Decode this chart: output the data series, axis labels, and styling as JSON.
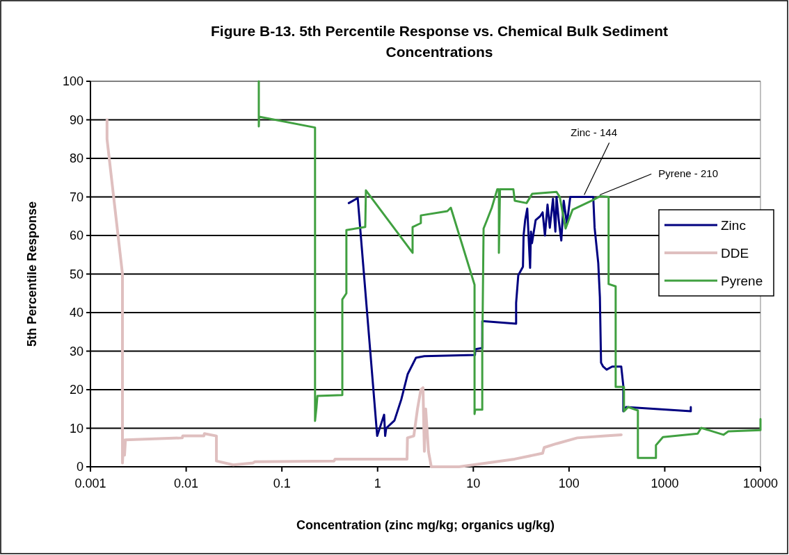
{
  "chart_data": {
    "type": "line",
    "title": "Figure B-13.  5th Percentile Response vs. Chemical Bulk Sediment Concentrations",
    "xlabel": "Concentration (zinc mg/kg; organics ug/kg)",
    "ylabel": "5th Percentile Response",
    "log": "x",
    "xlim": [
      0.001,
      10000
    ],
    "xticks": [
      0.001,
      0.01,
      0.1,
      1,
      10,
      100,
      1000,
      10000
    ],
    "ylim": [
      0,
      100
    ],
    "yticks": [
      0,
      10,
      20,
      30,
      40,
      50,
      60,
      70,
      80,
      90,
      100
    ],
    "grid": "y",
    "legend": "right",
    "line_style": "solid",
    "marker": "none",
    "annotations": [
      {
        "text": "Zinc - 144",
        "x": 144,
        "y": 70
      },
      {
        "text": "Pyrene - 210",
        "x": 210,
        "y": 70
      }
    ],
    "series": [
      {
        "name": "Zinc",
        "color": "#000080",
        "x": [
          0.5,
          0.62,
          0.99,
          1.17,
          1.2,
          1.23,
          1.5,
          1.77,
          2.06,
          2.52,
          3.08,
          10.4,
          10.5,
          12.4,
          12.4,
          28,
          28,
          29.5,
          33,
          33.5,
          34.8,
          36.6,
          39.2,
          40,
          41,
          44.8,
          50,
          53,
          56,
          59.6,
          63,
          68,
          72,
          74,
          78,
          83,
          88,
          95,
          103,
          179,
          185,
          202,
          210,
          216,
          227,
          247,
          282,
          351,
          369,
          369,
          394,
          1871,
          1871
        ],
        "values": [
          68.4,
          69.7,
          8,
          13.5,
          8,
          10,
          12,
          17.5,
          24,
          28.3,
          28.7,
          29,
          30.5,
          30.8,
          37.8,
          37.1,
          42.5,
          49.7,
          51.9,
          60,
          64,
          67,
          51.6,
          61,
          58,
          64,
          65,
          66,
          60,
          68,
          62,
          69.5,
          61,
          70,
          64,
          58.7,
          69,
          63,
          70,
          70,
          62,
          52.8,
          44,
          27,
          26,
          25.2,
          26,
          26,
          21,
          14.4,
          15.5,
          14.4,
          15.5
        ]
      },
      {
        "name": "DDE",
        "color": "#dfbfbf",
        "x": [
          0.00149,
          0.00149,
          0.00216,
          0.00216,
          0.00222,
          0.00227,
          0.00232,
          0.0091,
          0.0092,
          0.0153,
          0.0155,
          0.0207,
          0.0207,
          0.031,
          0.05,
          0.052,
          0.35,
          0.36,
          2.03,
          2.05,
          2.39,
          2.61,
          2.83,
          2.98,
          3.08,
          3.18,
          3.4,
          3.64,
          7.1,
          13.9,
          27,
          53,
          55,
          74,
          122,
          239,
          351
        ],
        "values": [
          90,
          85,
          50,
          1,
          7,
          3,
          7,
          7.5,
          8,
          8,
          8.6,
          8,
          1.5,
          0.5,
          1,
          1.3,
          1.5,
          2,
          2,
          7.5,
          8,
          15,
          20,
          20.5,
          4,
          15,
          4,
          0,
          0,
          1,
          2,
          3.5,
          5,
          6,
          7.5,
          8,
          8.3
        ]
      },
      {
        "name": "Pyrene",
        "color": "#40a040",
        "x": [
          0.0574,
          0.0574,
          0.0578,
          0.222,
          0.222,
          0.23,
          0.235,
          0.428,
          0.428,
          0.472,
          0.472,
          0.743,
          0.755,
          2.32,
          2.32,
          2.83,
          2.83,
          5.35,
          5.82,
          10.3,
          10.3,
          10.45,
          12.4,
          12.4,
          12.8,
          13.9,
          15.6,
          17.8,
          18.5,
          18.5,
          19,
          26.2,
          27.1,
          36,
          41.2,
          74,
          80,
          92,
          109,
          171,
          212,
          259,
          259,
          307,
          307,
          375,
          375,
          415,
          524,
          524,
          809,
          809,
          957,
          2208,
          2404,
          4105,
          4613,
          10000,
          10000
        ],
        "values": [
          100,
          88.3,
          90.8,
          88,
          11.9,
          15.5,
          18.4,
          18.6,
          43.4,
          45,
          61.4,
          62.2,
          71.7,
          55.5,
          62.2,
          63.2,
          65.2,
          66.3,
          67.2,
          47.2,
          13.7,
          14.8,
          14.8,
          29.5,
          61.8,
          64,
          67.2,
          72,
          72,
          55.5,
          72,
          72,
          69,
          68.4,
          70.8,
          71.3,
          70,
          61.8,
          66.7,
          69,
          70.2,
          70,
          47.4,
          46.8,
          20.7,
          20.7,
          14.4,
          15.5,
          14.6,
          2.3,
          2.3,
          5.6,
          7.7,
          8.6,
          10.1,
          8.3,
          9.2,
          9.5,
          12.4
        ]
      }
    ]
  }
}
